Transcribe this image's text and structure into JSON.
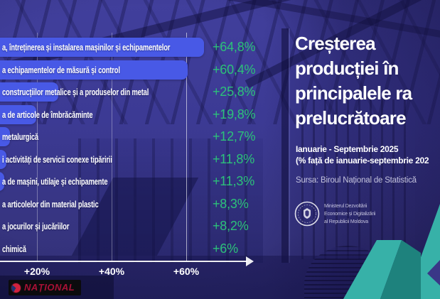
{
  "title": {
    "lines": [
      "Creșterea",
      "producției în",
      "principalele ra",
      "prelucrătoare"
    ]
  },
  "subtitle": {
    "period": "Ianuarie - Septembrie 2025",
    "comparison": "(% față de ianuarie-septembrie 202"
  },
  "source": "Sursa: Biroul Național de Statistică",
  "ministry": {
    "seal": "moldova-coat-of-arms-seal",
    "lines": [
      "Ministerul Dezvoltării",
      "Economice și Digitalizării",
      "al Republicii Moldova"
    ]
  },
  "watermark": {
    "text": "NAȚIONAL"
  },
  "colors": {
    "background": "#3c3a94",
    "bar": "#4859e6",
    "value_green": "#2cc179",
    "teal_light": "#37b1a8",
    "teal_dark": "#1e827d",
    "text_white": "#ffffff"
  },
  "chart_data": {
    "type": "bar",
    "orientation": "horizontal",
    "unit": "%",
    "note": "left edge of bars and category names cropped at image boundary",
    "categories": [
      "a, întreținerea și instalarea mașinilor și echipamentelor",
      "a echipamentelor de măsură și control",
      "construcțiilor metalice și a produselor din metal",
      "a de articole de îmbrăcăminte",
      "metalurgică",
      "i activități de servicii conexe tipăririi",
      "a de mașini, utilaje și echipamente",
      "a articolelor din material plastic",
      "a jocurilor și jucăriilor",
      "chimică"
    ],
    "values": [
      64.8,
      60.4,
      25.8,
      19.8,
      12.7,
      11.8,
      11.3,
      8.3,
      8.2,
      6
    ],
    "value_labels": [
      "+64,8%",
      "+60,4%",
      "+25,8%",
      "+19,8%",
      "+12,7%",
      "+11,8%",
      "+11,3%",
      "+8,3%",
      "+8,2%",
      "+6%"
    ],
    "x_ticks": [
      "+20%",
      "+40%",
      "+60%"
    ],
    "x_tick_values": [
      20,
      40,
      60
    ],
    "xlim": [
      0,
      70
    ],
    "grid": true,
    "legend": false
  }
}
